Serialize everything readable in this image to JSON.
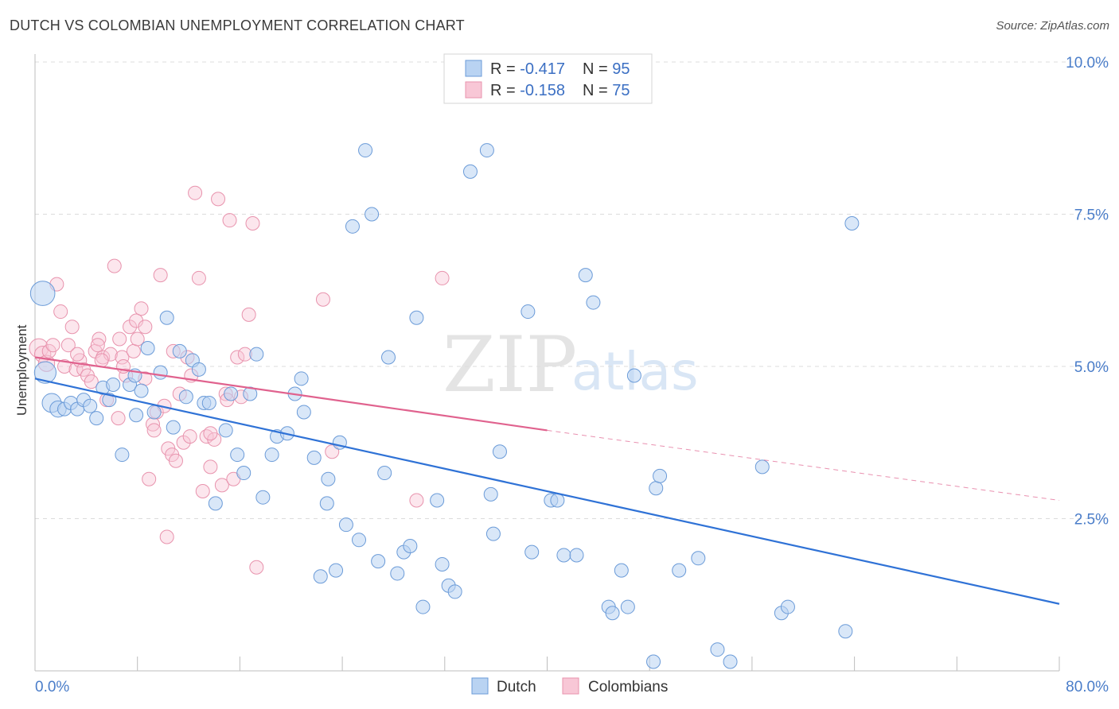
{
  "title": "DUTCH VS COLOMBIAN UNEMPLOYMENT CORRELATION CHART",
  "source": "Source: ZipAtlas.com",
  "watermark": {
    "zip": "ZIP",
    "atlas": "atlas"
  },
  "colors": {
    "dutch_fill": "#b9d3f2",
    "dutch_stroke": "#6b9bd8",
    "dutch_line": "#2f72d6",
    "col_fill": "#f8c7d6",
    "col_stroke": "#e893ad",
    "col_line": "#e0628e",
    "grid": "#dcdcdc",
    "axis_text": "#4a7dc9"
  },
  "legend": {
    "rows": [
      {
        "r_label": "R = ",
        "r_value": "-0.417",
        "n_label": "N = ",
        "n_value": "95"
      },
      {
        "r_label": "R = ",
        "r_value": "-0.158",
        "n_label": "N = ",
        "n_value": "75"
      }
    ]
  },
  "bottom_legend": [
    "Dutch",
    "Colombians"
  ],
  "chart_data": {
    "type": "scatter",
    "title": "DUTCH VS COLOMBIAN UNEMPLOYMENT CORRELATION CHART",
    "xlabel": "",
    "ylabel": "Unemployment",
    "xlim": [
      0,
      80
    ],
    "ylim": [
      0,
      10
    ],
    "x_tick_labels": [
      "0.0%",
      "80.0%"
    ],
    "y_ticks": [
      2.5,
      5.0,
      7.5,
      10.0
    ],
    "y_tick_labels": [
      "2.5%",
      "5.0%",
      "7.5%",
      "10.0%"
    ],
    "grid": true,
    "legend_position": "top-center",
    "series": [
      {
        "name": "Dutch",
        "R": -0.417,
        "N": 95,
        "trend": {
          "x": [
            0,
            80
          ],
          "y": [
            4.8,
            1.1
          ]
        },
        "points": [
          [
            0.6,
            6.2,
            18
          ],
          [
            0.8,
            4.9,
            16
          ],
          [
            1.3,
            4.4,
            14
          ],
          [
            1.8,
            4.3,
            12
          ],
          [
            2.3,
            4.3,
            10
          ],
          [
            2.8,
            4.4,
            10
          ],
          [
            3.3,
            4.3,
            10
          ],
          [
            3.8,
            4.45,
            10
          ],
          [
            4.3,
            4.35,
            10
          ],
          [
            4.8,
            4.15,
            10
          ],
          [
            5.3,
            4.65,
            10
          ],
          [
            5.8,
            4.45,
            10
          ],
          [
            6.1,
            4.7,
            10
          ],
          [
            6.8,
            3.55,
            10
          ],
          [
            7.4,
            4.7,
            10
          ],
          [
            7.8,
            4.85,
            10
          ],
          [
            7.9,
            4.2,
            10
          ],
          [
            8.3,
            4.6,
            10
          ],
          [
            8.8,
            5.3,
            10
          ],
          [
            9.3,
            4.25,
            10
          ],
          [
            9.8,
            4.9,
            10
          ],
          [
            10.3,
            5.8,
            10
          ],
          [
            10.8,
            4.0,
            10
          ],
          [
            11.3,
            5.25,
            10
          ],
          [
            11.8,
            4.5,
            10
          ],
          [
            12.3,
            5.1,
            10
          ],
          [
            12.8,
            4.95,
            10
          ],
          [
            13.2,
            4.4,
            10
          ],
          [
            13.6,
            4.4,
            10
          ],
          [
            14.1,
            2.75,
            10
          ],
          [
            14.9,
            3.95,
            10
          ],
          [
            15.3,
            4.55,
            10
          ],
          [
            15.8,
            3.55,
            10
          ],
          [
            16.3,
            3.25,
            10
          ],
          [
            16.8,
            4.55,
            10
          ],
          [
            17.3,
            5.2,
            10
          ],
          [
            17.8,
            2.85,
            10
          ],
          [
            18.5,
            3.55,
            10
          ],
          [
            18.9,
            3.85,
            10
          ],
          [
            19.7,
            3.9,
            10
          ],
          [
            20.3,
            4.55,
            10
          ],
          [
            20.8,
            4.8,
            10
          ],
          [
            21.0,
            4.25,
            10
          ],
          [
            21.8,
            3.5,
            10
          ],
          [
            22.3,
            1.55,
            10
          ],
          [
            22.8,
            2.75,
            10
          ],
          [
            22.9,
            3.15,
            10
          ],
          [
            23.5,
            1.65,
            10
          ],
          [
            23.8,
            3.75,
            10
          ],
          [
            24.3,
            2.4,
            10
          ],
          [
            24.8,
            7.3,
            10
          ],
          [
            25.3,
            2.15,
            10
          ],
          [
            25.8,
            8.55,
            10
          ],
          [
            26.3,
            7.5,
            10
          ],
          [
            26.8,
            1.8,
            10
          ],
          [
            27.3,
            3.25,
            10
          ],
          [
            27.6,
            5.15,
            10
          ],
          [
            28.3,
            1.6,
            10
          ],
          [
            28.8,
            1.95,
            10
          ],
          [
            29.3,
            2.05,
            10
          ],
          [
            29.8,
            5.8,
            10
          ],
          [
            30.3,
            1.05,
            10
          ],
          [
            31.4,
            2.8,
            10
          ],
          [
            31.8,
            1.75,
            10
          ],
          [
            32.3,
            1.4,
            10
          ],
          [
            32.8,
            1.3,
            10
          ],
          [
            34.0,
            8.2,
            10
          ],
          [
            35.3,
            8.55,
            10
          ],
          [
            35.6,
            2.9,
            10
          ],
          [
            35.8,
            2.25,
            10
          ],
          [
            36.3,
            3.6,
            10
          ],
          [
            38.5,
            5.9,
            10
          ],
          [
            38.8,
            1.95,
            10
          ],
          [
            40.3,
            2.8,
            10
          ],
          [
            40.8,
            2.8,
            10
          ],
          [
            41.3,
            1.9,
            10
          ],
          [
            42.3,
            1.9,
            10
          ],
          [
            43.0,
            6.5,
            10
          ],
          [
            43.6,
            6.05,
            10
          ],
          [
            44.8,
            1.05,
            10
          ],
          [
            45.1,
            0.95,
            10
          ],
          [
            45.8,
            1.65,
            10
          ],
          [
            46.3,
            1.05,
            10
          ],
          [
            46.8,
            4.85,
            10
          ],
          [
            48.3,
            0.15,
            10
          ],
          [
            48.5,
            3.0,
            10
          ],
          [
            48.8,
            3.2,
            10
          ],
          [
            50.3,
            1.65,
            10
          ],
          [
            51.8,
            1.85,
            10
          ],
          [
            53.3,
            0.35,
            10
          ],
          [
            54.3,
            0.15,
            10
          ],
          [
            56.8,
            3.35,
            10
          ],
          [
            58.3,
            0.95,
            10
          ],
          [
            58.8,
            1.05,
            10
          ],
          [
            63.3,
            0.65,
            10
          ],
          [
            63.8,
            7.35,
            10
          ]
        ]
      },
      {
        "name": "Colombians",
        "R": -0.158,
        "N": 75,
        "trend": {
          "x": [
            0,
            40
          ],
          "y": [
            5.15,
            3.95
          ]
        },
        "trend_extension": {
          "x": [
            40,
            80
          ],
          "y": [
            3.95,
            2.8
          ]
        },
        "points": [
          [
            0.3,
            5.3,
            14
          ],
          [
            0.6,
            5.2,
            12
          ],
          [
            0.9,
            5.05,
            12
          ],
          [
            1.1,
            5.25,
            10
          ],
          [
            1.4,
            5.35,
            10
          ],
          [
            1.7,
            6.35,
            10
          ],
          [
            2.0,
            5.9,
            10
          ],
          [
            2.3,
            5.0,
            10
          ],
          [
            2.6,
            5.35,
            10
          ],
          [
            2.9,
            5.65,
            10
          ],
          [
            3.2,
            4.95,
            10
          ],
          [
            3.5,
            5.1,
            10
          ],
          [
            3.8,
            4.95,
            10
          ],
          [
            4.1,
            4.85,
            10
          ],
          [
            4.4,
            4.75,
            10
          ],
          [
            4.7,
            5.25,
            10
          ],
          [
            5.0,
            5.45,
            10
          ],
          [
            5.3,
            5.15,
            10
          ],
          [
            5.6,
            4.45,
            10
          ],
          [
            5.9,
            5.2,
            10
          ],
          [
            6.2,
            6.65,
            10
          ],
          [
            6.5,
            4.15,
            10
          ],
          [
            6.8,
            5.15,
            10
          ],
          [
            7.1,
            4.85,
            10
          ],
          [
            7.4,
            5.65,
            10
          ],
          [
            7.7,
            5.25,
            10
          ],
          [
            8.0,
            5.45,
            10
          ],
          [
            8.3,
            5.95,
            10
          ],
          [
            8.6,
            4.8,
            10
          ],
          [
            8.9,
            3.15,
            10
          ],
          [
            9.2,
            4.05,
            10
          ],
          [
            9.5,
            4.25,
            10
          ],
          [
            9.8,
            6.5,
            10
          ],
          [
            10.1,
            4.35,
            10
          ],
          [
            10.4,
            3.65,
            10
          ],
          [
            10.7,
            3.55,
            10
          ],
          [
            11.0,
            3.45,
            10
          ],
          [
            11.3,
            4.55,
            10
          ],
          [
            11.6,
            3.75,
            10
          ],
          [
            11.9,
            5.15,
            10
          ],
          [
            12.2,
            4.85,
            10
          ],
          [
            12.5,
            7.85,
            10
          ],
          [
            12.8,
            6.45,
            10
          ],
          [
            13.1,
            2.95,
            10
          ],
          [
            13.4,
            3.85,
            10
          ],
          [
            13.7,
            3.35,
            10
          ],
          [
            14.0,
            3.8,
            10
          ],
          [
            14.3,
            7.75,
            10
          ],
          [
            14.6,
            3.05,
            10
          ],
          [
            14.9,
            4.55,
            10
          ],
          [
            15.2,
            7.4,
            10
          ],
          [
            15.5,
            3.15,
            10
          ],
          [
            15.8,
            5.15,
            10
          ],
          [
            16.1,
            4.5,
            10
          ],
          [
            16.4,
            5.2,
            10
          ],
          [
            16.7,
            5.85,
            10
          ],
          [
            17.0,
            7.35,
            10
          ],
          [
            17.3,
            1.7,
            10
          ],
          [
            10.3,
            2.2,
            10
          ],
          [
            22.5,
            6.1,
            10
          ],
          [
            23.2,
            3.6,
            10
          ],
          [
            29.8,
            2.8,
            10
          ],
          [
            31.8,
            6.45,
            10
          ],
          [
            4.9,
            5.35,
            10
          ],
          [
            6.6,
            5.45,
            10
          ],
          [
            7.9,
            5.75,
            10
          ],
          [
            9.3,
            3.95,
            10
          ],
          [
            10.8,
            5.25,
            10
          ],
          [
            12.1,
            3.85,
            10
          ],
          [
            13.7,
            3.9,
            10
          ],
          [
            15.0,
            4.45,
            10
          ],
          [
            3.3,
            5.2,
            10
          ],
          [
            5.2,
            5.1,
            10
          ],
          [
            6.9,
            5.0,
            10
          ],
          [
            8.6,
            5.65,
            10
          ]
        ]
      }
    ]
  }
}
